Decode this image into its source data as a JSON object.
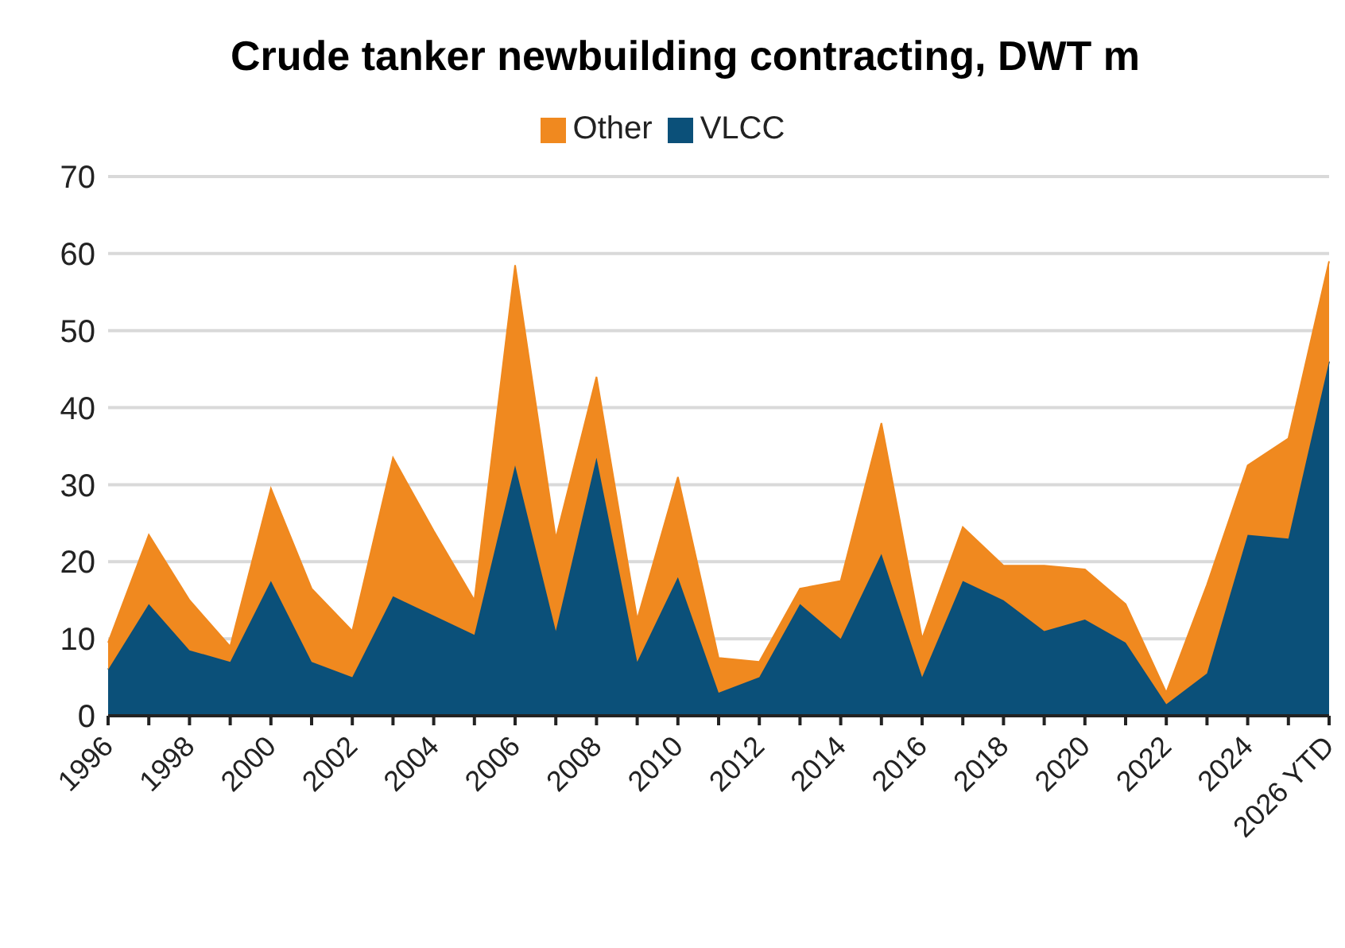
{
  "chart_data": {
    "type": "area",
    "title": "Crude tanker newbuilding contracting, DWT m",
    "stacked": true,
    "categories": [
      "1996",
      null,
      "1998",
      null,
      "2000",
      null,
      "2002",
      null,
      "2004",
      null,
      "2006",
      null,
      "2008",
      null,
      "2010",
      null,
      "2012",
      null,
      "2014",
      null,
      "2016",
      null,
      "2018",
      null,
      "2020",
      null,
      "2022",
      null,
      "2024",
      null,
      "2026 YTD"
    ],
    "series": [
      {
        "name": "VLCC",
        "color": "#0b5079",
        "values": [
          6,
          14.5,
          8.5,
          7,
          17.5,
          7,
          5,
          15.5,
          13,
          10.5,
          32.5,
          11,
          33.5,
          7,
          18,
          3,
          5,
          14.5,
          10,
          21,
          5,
          17.5,
          15,
          11,
          12.5,
          9.5,
          1.5,
          5.5,
          23.5,
          23,
          46
        ]
      },
      {
        "name": "Other",
        "color": "#f0891f",
        "values": [
          3.5,
          9,
          6.5,
          2,
          12,
          9.5,
          6,
          18,
          11,
          4.5,
          26,
          12,
          10.5,
          5.5,
          13,
          4.5,
          2,
          2,
          7.5,
          17,
          5,
          7,
          4.5,
          8.5,
          6.5,
          5,
          1.5,
          11.5,
          9,
          13,
          13
        ]
      }
    ],
    "ylim": [
      0,
      70
    ],
    "yticks": [
      0,
      10,
      20,
      30,
      40,
      50,
      60,
      70
    ],
    "grid": "y",
    "legend": "top"
  }
}
